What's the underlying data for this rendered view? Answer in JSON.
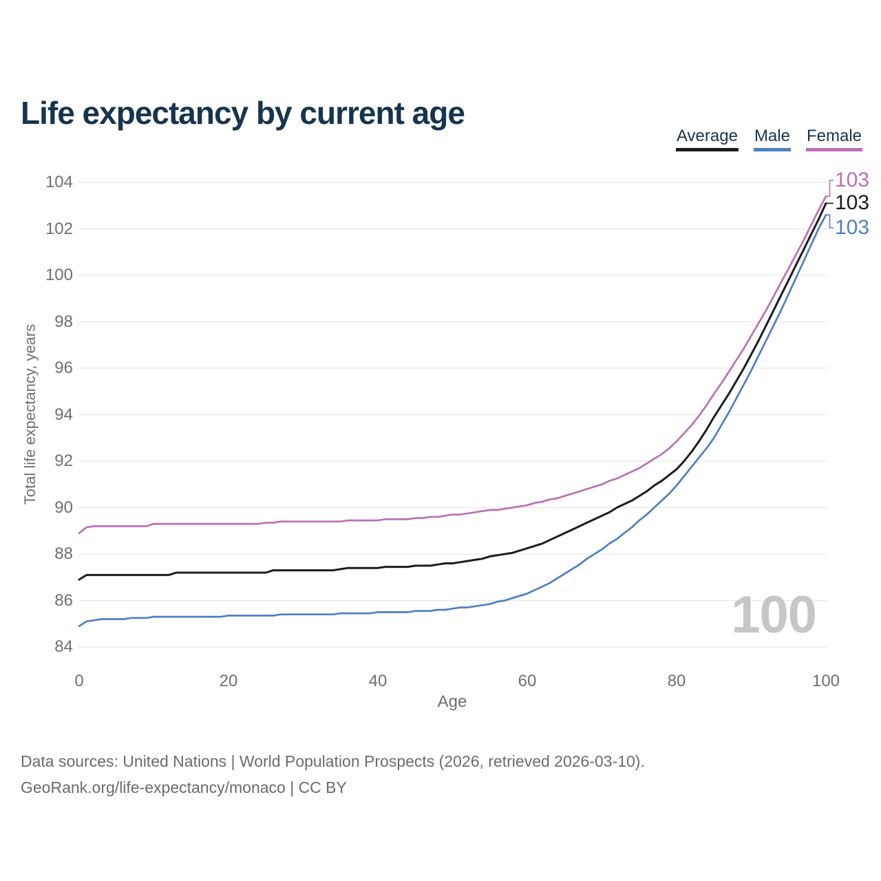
{
  "title": "Life expectancy by current age",
  "legend": [
    {
      "label": "Average",
      "color": "#1c1c1c"
    },
    {
      "label": "Male",
      "color": "#4e7ec6"
    },
    {
      "label": "Female",
      "color": "#bb6fb6"
    }
  ],
  "watermark": "100",
  "footer": {
    "line1": "Data sources: United Nations | World Population Prospects (2026, retrieved 2026-03-10).",
    "line2": "GeoRank.org/life-expectancy/monaco | CC BY"
  },
  "colors": {
    "title_text": "#17344f",
    "tick_text": "#6f6f6f",
    "grid": "#e8e8e8",
    "watermark": "#c6c6c6",
    "footer_text": "#6b6b6b",
    "background": "#ffffff"
  },
  "chart_data": {
    "type": "line",
    "title": "Life expectancy by current age",
    "xlabel": "Age",
    "ylabel": "Total life expectancy, years",
    "xlim": [
      0,
      100
    ],
    "ylim": [
      84,
      104
    ],
    "xticks": [
      0,
      20,
      40,
      60,
      80,
      100
    ],
    "yticks": [
      84,
      86,
      88,
      90,
      92,
      94,
      96,
      98,
      100,
      102,
      104
    ],
    "grid": "horizontal",
    "legend_position": "top-right",
    "x_description": "current age in years, 0 to 100, step 1",
    "series": [
      {
        "name": "Average",
        "color": "#1c1c1c",
        "end_label": "103",
        "values": [
          86.9,
          87.1,
          87.1,
          87.1,
          87.1,
          87.1,
          87.1,
          87.1,
          87.1,
          87.1,
          87.1,
          87.1,
          87.1,
          87.2,
          87.2,
          87.2,
          87.2,
          87.2,
          87.2,
          87.2,
          87.2,
          87.2,
          87.2,
          87.2,
          87.2,
          87.2,
          87.3,
          87.3,
          87.3,
          87.3,
          87.3,
          87.3,
          87.3,
          87.3,
          87.3,
          87.35,
          87.4,
          87.4,
          87.4,
          87.4,
          87.4,
          87.45,
          87.45,
          87.45,
          87.45,
          87.5,
          87.5,
          87.5,
          87.55,
          87.6,
          87.6,
          87.65,
          87.7,
          87.75,
          87.8,
          87.9,
          87.95,
          88.0,
          88.05,
          88.15,
          88.25,
          88.35,
          88.45,
          88.6,
          88.75,
          88.9,
          89.05,
          89.2,
          89.35,
          89.5,
          89.65,
          89.8,
          90.0,
          90.15,
          90.3,
          90.5,
          90.7,
          90.95,
          91.15,
          91.4,
          91.65,
          92.0,
          92.4,
          92.85,
          93.35,
          93.9,
          94.4,
          94.9,
          95.45,
          96.0,
          96.6,
          97.2,
          97.85,
          98.5,
          99.15,
          99.8,
          100.45,
          101.1,
          101.75,
          102.4,
          103.1
        ]
      },
      {
        "name": "Male",
        "color": "#4e7ec6",
        "end_label": "103",
        "values": [
          84.9,
          85.1,
          85.15,
          85.2,
          85.2,
          85.2,
          85.2,
          85.25,
          85.25,
          85.25,
          85.3,
          85.3,
          85.3,
          85.3,
          85.3,
          85.3,
          85.3,
          85.3,
          85.3,
          85.3,
          85.35,
          85.35,
          85.35,
          85.35,
          85.35,
          85.35,
          85.35,
          85.4,
          85.4,
          85.4,
          85.4,
          85.4,
          85.4,
          85.4,
          85.4,
          85.45,
          85.45,
          85.45,
          85.45,
          85.45,
          85.5,
          85.5,
          85.5,
          85.5,
          85.5,
          85.55,
          85.55,
          85.55,
          85.6,
          85.6,
          85.65,
          85.7,
          85.7,
          85.75,
          85.8,
          85.85,
          85.95,
          86.0,
          86.1,
          86.2,
          86.3,
          86.45,
          86.6,
          86.75,
          86.95,
          87.15,
          87.35,
          87.55,
          87.8,
          88.0,
          88.2,
          88.45,
          88.65,
          88.9,
          89.15,
          89.45,
          89.7,
          90.0,
          90.3,
          90.6,
          90.95,
          91.35,
          91.75,
          92.15,
          92.55,
          93.0,
          93.55,
          94.1,
          94.7,
          95.3,
          95.9,
          96.55,
          97.2,
          97.85,
          98.5,
          99.2,
          99.9,
          100.6,
          101.3,
          102.0,
          102.6
        ]
      },
      {
        "name": "Female",
        "color": "#bb6fb6",
        "end_label": "103",
        "values": [
          88.9,
          89.15,
          89.2,
          89.2,
          89.2,
          89.2,
          89.2,
          89.2,
          89.2,
          89.2,
          89.3,
          89.3,
          89.3,
          89.3,
          89.3,
          89.3,
          89.3,
          89.3,
          89.3,
          89.3,
          89.3,
          89.3,
          89.3,
          89.3,
          89.3,
          89.35,
          89.35,
          89.4,
          89.4,
          89.4,
          89.4,
          89.4,
          89.4,
          89.4,
          89.4,
          89.4,
          89.45,
          89.45,
          89.45,
          89.45,
          89.45,
          89.5,
          89.5,
          89.5,
          89.5,
          89.55,
          89.55,
          89.6,
          89.6,
          89.65,
          89.7,
          89.7,
          89.75,
          89.8,
          89.85,
          89.9,
          89.9,
          89.95,
          90.0,
          90.05,
          90.1,
          90.2,
          90.25,
          90.35,
          90.4,
          90.5,
          90.6,
          90.7,
          90.8,
          90.9,
          91.0,
          91.15,
          91.25,
          91.4,
          91.55,
          91.7,
          91.9,
          92.1,
          92.3,
          92.55,
          92.85,
          93.2,
          93.55,
          93.95,
          94.4,
          94.9,
          95.35,
          95.85,
          96.35,
          96.85,
          97.4,
          97.95,
          98.5,
          99.1,
          99.7,
          100.3,
          100.9,
          101.5,
          102.15,
          102.8,
          103.4
        ]
      }
    ]
  }
}
